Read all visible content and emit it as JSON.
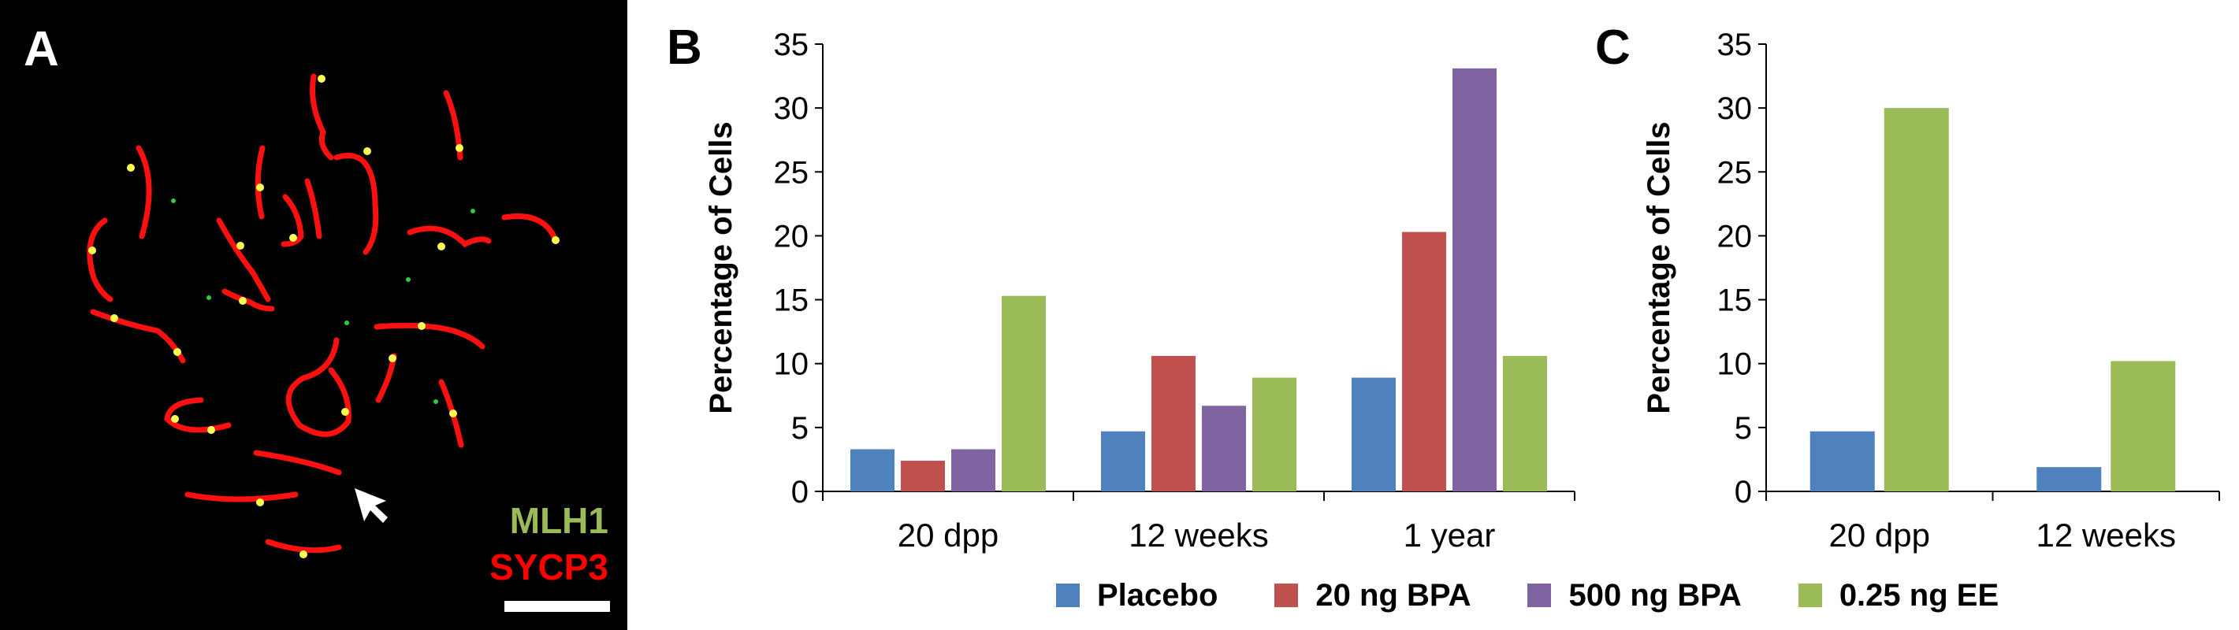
{
  "figure": {
    "panel_a": {
      "letter": "A",
      "labels": [
        {
          "text": "MLH1",
          "color": "#9bbb59"
        },
        {
          "text": "SYCP3",
          "color": "#ff0000"
        }
      ]
    },
    "panel_b_letter": "B",
    "panel_c_letter": "C"
  },
  "legend": [
    {
      "label": "Placebo",
      "color": "#4f81bd"
    },
    {
      "label": "20 ng BPA",
      "color": "#c0504d"
    },
    {
      "label": "500 ng BPA",
      "color": "#8064a2"
    },
    {
      "label": "0.25 ng EE",
      "color": "#9bbb59"
    }
  ],
  "chart_data": [
    {
      "type": "bar",
      "panel": "B",
      "title": "",
      "xlabel": "",
      "ylabel": "Percentage of Cells",
      "ylim": [
        0,
        35
      ],
      "yticks": [
        0,
        5,
        10,
        15,
        20,
        25,
        30,
        35
      ],
      "grid": false,
      "legend_position": "bottom",
      "categories": [
        "20 dpp",
        "12 weeks",
        "1 year"
      ],
      "series": [
        {
          "name": "Placebo",
          "color": "#4f81bd",
          "values": [
            3.3,
            4.7,
            8.9
          ]
        },
        {
          "name": "20 ng BPA",
          "color": "#c0504d",
          "values": [
            2.4,
            10.6,
            20.3
          ]
        },
        {
          "name": "500 ng BPA",
          "color": "#8064a2",
          "values": [
            3.3,
            6.7,
            33.1
          ]
        },
        {
          "name": "0.25 ng EE",
          "color": "#9bbb59",
          "values": [
            15.3,
            8.9,
            10.6
          ]
        }
      ]
    },
    {
      "type": "bar",
      "panel": "C",
      "title": "",
      "xlabel": "",
      "ylabel": "Percentage of Cells",
      "ylim": [
        0,
        35
      ],
      "yticks": [
        0,
        5,
        10,
        15,
        20,
        25,
        30,
        35
      ],
      "grid": false,
      "legend_position": "bottom",
      "categories": [
        "20 dpp",
        "12 weeks"
      ],
      "series": [
        {
          "name": "Placebo",
          "color": "#4f81bd",
          "values": [
            4.7,
            1.9
          ]
        },
        {
          "name": "0.25 ng EE",
          "color": "#9bbb59",
          "values": [
            30.0,
            10.2
          ]
        }
      ]
    }
  ]
}
